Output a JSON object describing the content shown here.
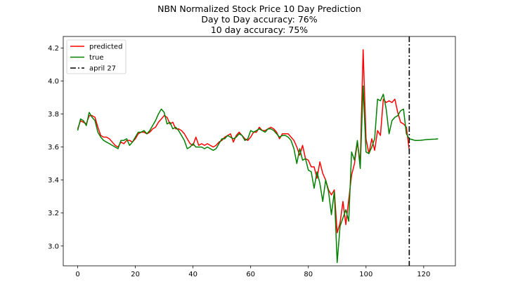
{
  "chart_data": {
    "type": "line",
    "title": [
      "NBN Normalized Stock Price 10 Day Prediction",
      "Day to Day accuracy: 76%",
      "10 day accuracy: 75%"
    ],
    "xlabel": "",
    "ylabel": "",
    "xlim": [
      -5,
      131
    ],
    "ylim": [
      2.88,
      4.27
    ],
    "xticks": [
      0,
      20,
      40,
      60,
      80,
      100,
      120
    ],
    "yticks": [
      3.0,
      3.2,
      3.4,
      3.6,
      3.8,
      4.0,
      4.2
    ],
    "ytick_labels": [
      "3.0",
      "3.2",
      "3.4",
      "3.6",
      "3.8",
      "4.0",
      "4.2"
    ],
    "grid": false,
    "legend_position": "top-left",
    "series": [
      {
        "name": "predicted",
        "color": "#ff0000",
        "x": [
          0,
          1,
          2,
          3,
          4,
          5,
          6,
          7,
          8,
          9,
          10,
          11,
          12,
          13,
          14,
          15,
          16,
          17,
          18,
          19,
          20,
          21,
          22,
          23,
          24,
          25,
          26,
          27,
          28,
          29,
          30,
          31,
          32,
          33,
          34,
          35,
          36,
          37,
          38,
          39,
          40,
          41,
          42,
          43,
          44,
          45,
          46,
          47,
          48,
          49,
          50,
          51,
          52,
          53,
          54,
          55,
          56,
          57,
          58,
          59,
          60,
          61,
          62,
          63,
          64,
          65,
          66,
          67,
          68,
          69,
          70,
          71,
          72,
          73,
          74,
          75,
          76,
          77,
          78,
          79,
          80,
          81,
          82,
          83,
          84,
          85,
          86,
          87,
          88,
          89,
          90,
          91,
          92,
          93,
          94,
          95,
          96,
          97,
          98,
          99,
          100,
          101,
          102,
          103,
          104,
          105,
          106,
          107,
          108,
          109,
          110,
          111,
          112,
          113,
          114,
          115
        ],
        "y": [
          3.71,
          3.76,
          3.75,
          3.74,
          3.79,
          3.79,
          3.78,
          3.72,
          3.67,
          3.66,
          3.66,
          3.65,
          3.63,
          3.61,
          3.6,
          3.63,
          3.62,
          3.64,
          3.64,
          3.63,
          3.65,
          3.68,
          3.69,
          3.69,
          3.68,
          3.69,
          3.71,
          3.72,
          3.75,
          3.77,
          3.79,
          3.78,
          3.74,
          3.75,
          3.71,
          3.71,
          3.7,
          3.68,
          3.65,
          3.62,
          3.61,
          3.66,
          3.61,
          3.62,
          3.61,
          3.62,
          3.61,
          3.6,
          3.61,
          3.63,
          3.64,
          3.66,
          3.67,
          3.68,
          3.63,
          3.67,
          3.69,
          3.67,
          3.65,
          3.64,
          3.66,
          3.69,
          3.69,
          3.72,
          3.7,
          3.7,
          3.71,
          3.72,
          3.71,
          3.69,
          3.65,
          3.68,
          3.68,
          3.68,
          3.66,
          3.64,
          3.6,
          3.55,
          3.61,
          3.53,
          3.52,
          3.48,
          3.48,
          3.41,
          3.51,
          3.44,
          3.4,
          3.34,
          3.31,
          3.34,
          3.08,
          3.14,
          3.27,
          3.13,
          3.28,
          3.43,
          3.5,
          3.63,
          3.5,
          4.19,
          3.65,
          3.56,
          3.65,
          3.58,
          3.7,
          3.67,
          3.89,
          3.87,
          3.88,
          3.87,
          3.89,
          3.81,
          3.75,
          3.74,
          3.72,
          3.58
        ]
      },
      {
        "name": "true",
        "color": "#008000",
        "x": [
          0,
          1,
          2,
          3,
          4,
          5,
          6,
          7,
          8,
          9,
          10,
          11,
          12,
          13,
          14,
          15,
          16,
          17,
          18,
          19,
          20,
          21,
          22,
          23,
          24,
          25,
          26,
          27,
          28,
          29,
          30,
          31,
          32,
          33,
          34,
          35,
          36,
          37,
          38,
          39,
          40,
          41,
          42,
          43,
          44,
          45,
          46,
          47,
          48,
          49,
          50,
          51,
          52,
          53,
          54,
          55,
          56,
          57,
          58,
          59,
          60,
          61,
          62,
          63,
          64,
          65,
          66,
          67,
          68,
          69,
          70,
          71,
          72,
          73,
          74,
          75,
          76,
          77,
          78,
          79,
          80,
          81,
          82,
          83,
          84,
          85,
          86,
          87,
          88,
          89,
          90,
          91,
          92,
          93,
          94,
          95,
          96,
          97,
          98,
          99,
          100,
          101,
          102,
          103,
          104,
          105,
          106,
          107,
          108,
          109,
          110,
          111,
          112,
          113,
          114,
          115,
          116,
          117,
          118,
          119,
          120,
          121,
          122,
          123,
          124,
          125
        ],
        "y": [
          3.7,
          3.77,
          3.76,
          3.73,
          3.81,
          3.78,
          3.76,
          3.69,
          3.66,
          3.64,
          3.63,
          3.62,
          3.61,
          3.6,
          3.59,
          3.64,
          3.64,
          3.65,
          3.61,
          3.63,
          3.66,
          3.69,
          3.69,
          3.7,
          3.68,
          3.7,
          3.73,
          3.76,
          3.8,
          3.83,
          3.81,
          3.74,
          3.75,
          3.71,
          3.72,
          3.7,
          3.67,
          3.64,
          3.59,
          3.6,
          3.62,
          3.6,
          3.6,
          3.6,
          3.59,
          3.6,
          3.59,
          3.58,
          3.59,
          3.62,
          3.65,
          3.65,
          3.67,
          3.66,
          3.65,
          3.66,
          3.68,
          3.67,
          3.64,
          3.65,
          3.7,
          3.69,
          3.7,
          3.71,
          3.7,
          3.69,
          3.71,
          3.71,
          3.7,
          3.68,
          3.66,
          3.67,
          3.67,
          3.66,
          3.64,
          3.59,
          3.5,
          3.59,
          3.52,
          3.53,
          3.46,
          3.45,
          3.35,
          3.45,
          3.38,
          3.27,
          3.4,
          3.33,
          3.19,
          3.33,
          2.9,
          3.12,
          3.17,
          3.22,
          3.15,
          3.57,
          3.52,
          3.64,
          3.47,
          3.97,
          3.57,
          3.56,
          3.6,
          3.65,
          3.89,
          3.88,
          3.92,
          3.83,
          3.68,
          3.76,
          3.78,
          3.79,
          3.82,
          3.83,
          3.68,
          3.65,
          3.645,
          3.64,
          3.64,
          3.641,
          3.643,
          3.645,
          3.646,
          3.647,
          3.648,
          3.65
        ]
      }
    ],
    "marker": {
      "name": "april 27",
      "x": 115,
      "color": "#000000",
      "style": "dash-dot"
    }
  }
}
